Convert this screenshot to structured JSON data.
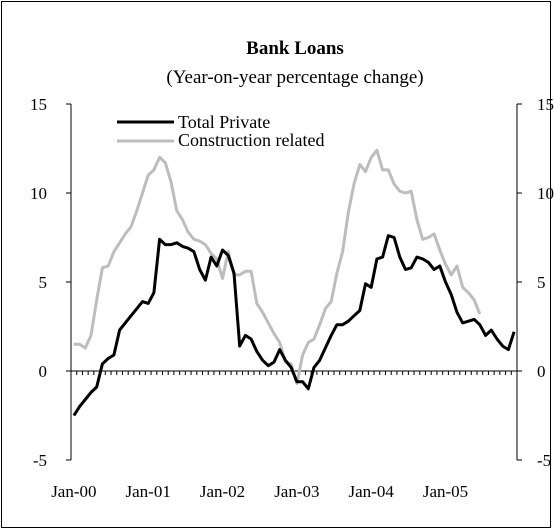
{
  "chart_data": {
    "type": "line",
    "title": "Bank Loans",
    "subtitle": "(Year-on-year percentage change)",
    "ylim": [
      -5,
      15
    ],
    "yticks": [
      -5,
      0,
      5,
      10,
      15
    ],
    "y_tick_labels_left": [
      "-5",
      "0",
      "5",
      "10",
      "15"
    ],
    "y_tick_labels_right": [
      "-5",
      "0",
      "5",
      "10",
      "15"
    ],
    "x_tick_labels": [
      "Jan-00",
      "Jan-01",
      "Jan-02",
      "Jan-03",
      "Jan-04",
      "Jan-05"
    ],
    "grid": false,
    "legend_position": "top-left",
    "x_start": "Jan-00",
    "x_frequency": "monthly",
    "series": [
      {
        "name": "Total Private",
        "color": "#000000",
        "values": [
          -2.5,
          -2.0,
          -1.6,
          -1.2,
          -0.9,
          0.4,
          0.7,
          0.9,
          2.3,
          2.7,
          3.1,
          3.5,
          3.9,
          3.8,
          4.4,
          7.4,
          7.1,
          7.1,
          7.2,
          7.0,
          6.9,
          6.7,
          5.7,
          5.1,
          6.4,
          5.9,
          6.8,
          6.5,
          5.5,
          1.4,
          2.0,
          1.8,
          1.1,
          0.6,
          0.3,
          0.5,
          1.2,
          0.6,
          0.2,
          -0.6,
          -0.6,
          -1.0,
          0.2,
          0.6,
          1.3,
          2.0,
          2.6,
          2.6,
          2.8,
          3.1,
          3.4,
          4.9,
          4.7,
          6.3,
          6.4,
          7.6,
          7.5,
          6.4,
          5.7,
          5.8,
          6.4,
          6.3,
          6.1,
          5.7,
          5.9,
          5.0,
          4.3,
          3.3,
          2.7,
          2.8,
          2.9,
          2.6,
          2.0,
          2.3,
          1.8,
          1.4,
          1.2,
          2.2
        ]
      },
      {
        "name": "Construction related",
        "color": "#bdbdbd",
        "values": [
          1.5,
          1.5,
          1.3,
          2.0,
          4.0,
          5.8,
          5.9,
          6.7,
          7.2,
          7.7,
          8.1,
          9.0,
          10.0,
          11.0,
          11.3,
          12.0,
          11.7,
          10.6,
          9.0,
          8.5,
          7.8,
          7.4,
          7.3,
          7.1,
          6.6,
          6.3,
          5.2,
          6.7,
          5.4,
          5.4,
          5.6,
          5.6,
          3.8,
          3.3,
          2.7,
          2.1,
          1.6,
          0.5,
          0.4,
          -0.7,
          0.9,
          1.6,
          1.8,
          2.6,
          3.5,
          3.9,
          5.5,
          6.7,
          8.9,
          10.5,
          11.6,
          11.2,
          12.0,
          12.4,
          11.3,
          11.3,
          10.5,
          10.1,
          10.0,
          10.1,
          8.5,
          7.4,
          7.5,
          7.7,
          6.8,
          6.0,
          5.4,
          5.9,
          4.7,
          4.4,
          4.0,
          3.2
        ]
      }
    ]
  }
}
